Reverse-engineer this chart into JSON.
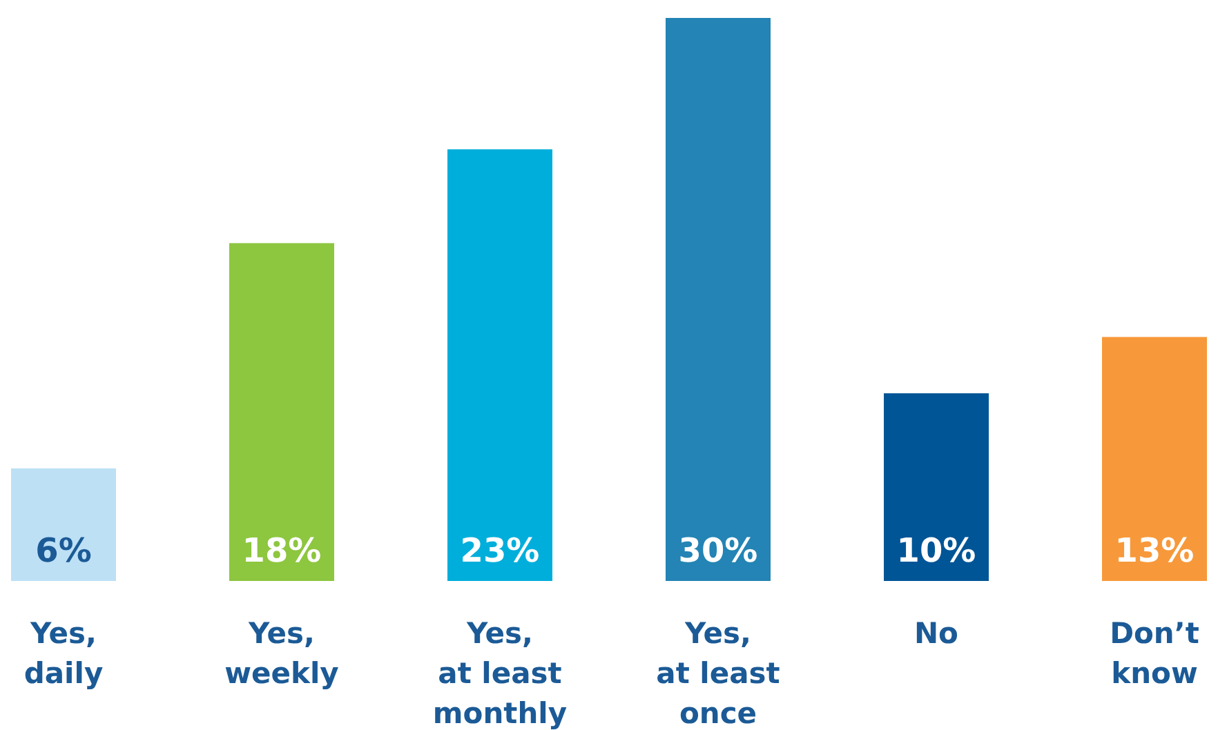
{
  "chart_data": {
    "type": "bar",
    "categories": [
      "Yes,\ndaily",
      "Yes,\nweekly",
      "Yes,\nat least\nmonthly",
      "Yes,\nat least\nonce",
      "No",
      "Don’t\nknow"
    ],
    "values": [
      6,
      18,
      23,
      30,
      10,
      13
    ],
    "colors": [
      "#bde0f5",
      "#8dc63f",
      "#00aedb",
      "#2384b5",
      "#005596",
      "#f7993a"
    ],
    "value_labels": [
      "6%",
      "18%",
      "23%",
      "30%",
      "10%",
      "13%"
    ],
    "ylim": [
      0,
      30
    ],
    "tick_labels": "x"
  }
}
